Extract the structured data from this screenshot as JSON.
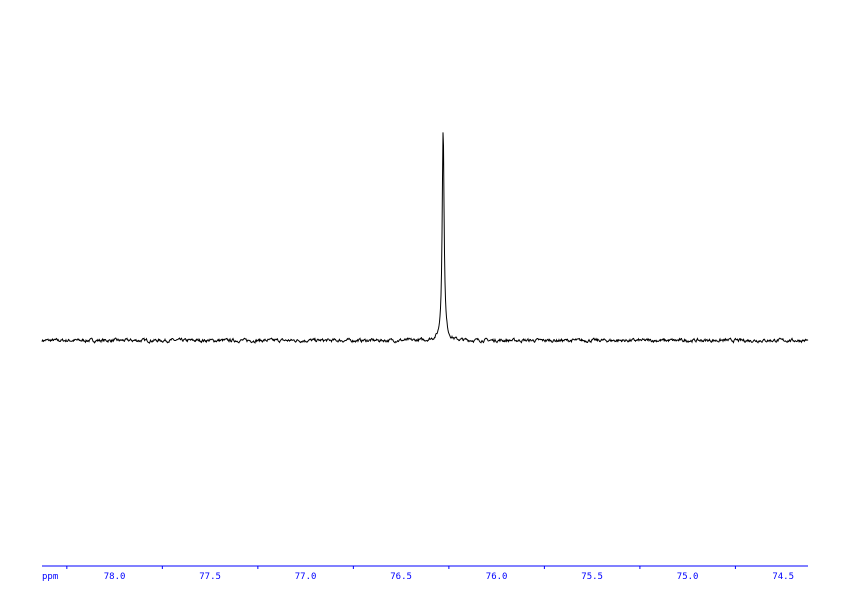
{
  "chart_data": {
    "type": "line",
    "title": "",
    "xlabel": "ppm",
    "ylabel": "",
    "xlim": [
      78.38,
      74.37
    ],
    "x_reversed": true,
    "ylim": [
      -1.06,
      1.6
    ],
    "grid": false,
    "x_ticks": [
      "78.0",
      "77.5",
      "77.0",
      "76.5",
      "76.0",
      "75.5",
      "75.0",
      "74.5"
    ],
    "x_tick_values": [
      78.0,
      77.5,
      77.0,
      76.5,
      76.0,
      75.5,
      75.0,
      74.5
    ],
    "x_minor_tick_values": [
      78.25,
      77.75,
      77.25,
      76.75,
      76.25,
      75.75,
      75.25,
      74.75
    ],
    "peaks": [
      {
        "ppm": 76.28,
        "intensity": 1.0,
        "width_ppm": 0.012
      }
    ],
    "baseline": 0,
    "noise_level": 0.01,
    "colors": {
      "spectrum": "#000000",
      "axis": "#0000ff"
    }
  }
}
